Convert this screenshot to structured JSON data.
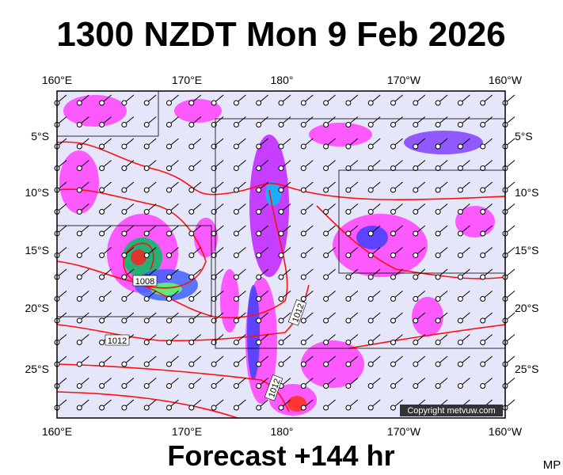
{
  "title": "1300 NZDT Mon 9 Feb 2026",
  "lon_labels_top": [
    "160°E",
    "170°E",
    "180°",
    "170°W",
    "160°W"
  ],
  "lon_labels_bottom": [
    "160°E",
    "170°E",
    "180°",
    "170°W",
    "160°W"
  ],
  "lat_labels_left": [
    "5°S",
    "10°S",
    "15°S",
    "20°S",
    "25°S"
  ],
  "lat_labels_right": [
    "5°S",
    "10°S",
    "15°S",
    "20°S",
    "25°S"
  ],
  "isobar_labels": [
    "1008",
    "1012",
    "1012",
    "1012"
  ],
  "copyright": "Copyright metvuw.com",
  "forecast": "Forecast +144 hr",
  "credit": "MP"
}
